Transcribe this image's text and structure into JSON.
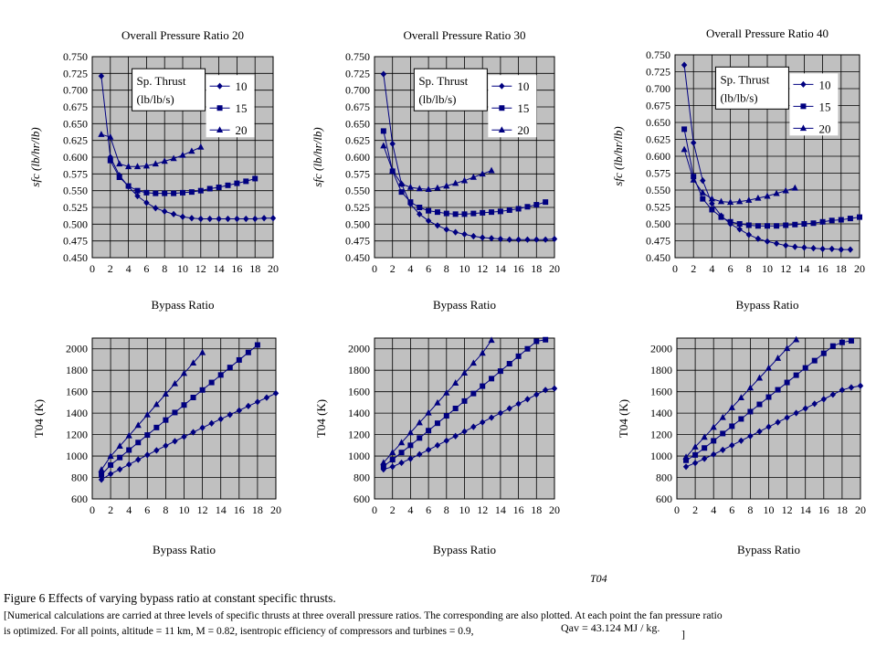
{
  "chart_data": [
    {
      "type": "line",
      "title": "Overall Pressure Ratio 20",
      "xlabel": "Bypass Ratio",
      "ylabel": "sfc  (lb/hr/lb)",
      "xlim": [
        0,
        20
      ],
      "ylim": [
        0.45,
        0.75
      ],
      "xticks": [
        "0",
        "2",
        "4",
        "6",
        "8",
        "10",
        "12",
        "14",
        "16",
        "18",
        "20"
      ],
      "yticks": [
        "0.450",
        "0.475",
        "0.500",
        "0.525",
        "0.550",
        "0.575",
        "0.600",
        "0.625",
        "0.650",
        "0.675",
        "0.700",
        "0.725",
        "0.750"
      ],
      "grid": true,
      "legend": {
        "title": [
          "Sp. Thrust",
          "(lb/lb/s)"
        ],
        "placement": "top-right"
      },
      "series": [
        {
          "name": "10",
          "marker": "diamond",
          "x": [
            1,
            2,
            3,
            4,
            5,
            6,
            7,
            8,
            9,
            10,
            11,
            12,
            13,
            14,
            15,
            16,
            17,
            18,
            19,
            20
          ],
          "y": [
            0.721,
            0.6,
            0.573,
            0.556,
            0.542,
            0.532,
            0.524,
            0.519,
            0.515,
            0.511,
            0.509,
            0.508,
            0.508,
            0.508,
            0.508,
            0.508,
            0.508,
            0.508,
            0.509,
            0.509
          ]
        },
        {
          "name": "15",
          "marker": "square",
          "x": [
            2,
            3,
            4,
            5,
            6,
            7,
            8,
            9,
            10,
            11,
            12,
            13,
            14,
            15,
            16,
            17,
            18
          ],
          "y": [
            0.595,
            0.57,
            0.557,
            0.55,
            0.547,
            0.546,
            0.546,
            0.546,
            0.547,
            0.548,
            0.55,
            0.553,
            0.555,
            0.558,
            0.561,
            0.564,
            0.568
          ]
        },
        {
          "name": "20",
          "marker": "triangle",
          "x": [
            1,
            2,
            3,
            4,
            5,
            6,
            7,
            8,
            9,
            10,
            11,
            12
          ],
          "y": [
            0.634,
            0.63,
            0.59,
            0.586,
            0.586,
            0.587,
            0.59,
            0.594,
            0.598,
            0.603,
            0.609,
            0.615
          ]
        }
      ]
    },
    {
      "type": "line",
      "title": "Overall Pressure Ratio 30",
      "xlabel": "Bypass Ratio",
      "ylabel": "sfc  (lb/hr/lb)",
      "xlim": [
        0,
        20
      ],
      "ylim": [
        0.45,
        0.75
      ],
      "xticks": [
        "0",
        "2",
        "4",
        "6",
        "8",
        "10",
        "12",
        "14",
        "16",
        "18",
        "20"
      ],
      "yticks": [
        "0.450",
        "0.475",
        "0.500",
        "0.525",
        "0.550",
        "0.575",
        "0.600",
        "0.625",
        "0.650",
        "0.675",
        "0.700",
        "0.725",
        "0.750"
      ],
      "grid": true,
      "legend": {
        "title": [
          "Sp. Thrust",
          "(lb/lb/s)"
        ],
        "placement": "top-right"
      },
      "series": [
        {
          "name": "10",
          "marker": "diamond",
          "x": [
            1,
            2,
            3,
            4,
            5,
            6,
            7,
            8,
            9,
            10,
            11,
            12,
            13,
            14,
            15,
            16,
            17,
            18,
            19,
            20
          ],
          "y": [
            0.724,
            0.62,
            0.56,
            0.53,
            0.515,
            0.505,
            0.498,
            0.492,
            0.488,
            0.485,
            0.482,
            0.48,
            0.479,
            0.478,
            0.477,
            0.477,
            0.477,
            0.477,
            0.477,
            0.478
          ]
        },
        {
          "name": "15",
          "marker": "square",
          "x": [
            1,
            2,
            3,
            4,
            5,
            6,
            7,
            8,
            9,
            10,
            11,
            12,
            13,
            14,
            15,
            16,
            17,
            18,
            19
          ],
          "y": [
            0.639,
            0.579,
            0.548,
            0.533,
            0.525,
            0.52,
            0.518,
            0.516,
            0.515,
            0.515,
            0.516,
            0.517,
            0.518,
            0.519,
            0.521,
            0.523,
            0.526,
            0.529,
            0.533
          ]
        },
        {
          "name": "20",
          "marker": "triangle",
          "x": [
            1,
            2,
            3,
            4,
            5,
            6,
            7,
            8,
            9,
            10,
            11,
            12,
            13
          ],
          "y": [
            0.617,
            0.58,
            0.56,
            0.555,
            0.553,
            0.552,
            0.554,
            0.557,
            0.561,
            0.565,
            0.57,
            0.575,
            0.58
          ]
        }
      ]
    },
    {
      "type": "line",
      "title": "Overall Pressure Ratio 40",
      "xlabel": "Bypass Ratio",
      "ylabel": "sfc  (lb/hr/lb)",
      "xlim": [
        0,
        20
      ],
      "ylim": [
        0.45,
        0.75
      ],
      "xticks": [
        "0",
        "2",
        "4",
        "6",
        "8",
        "10",
        "12",
        "14",
        "16",
        "18",
        "20"
      ],
      "yticks": [
        "0.450",
        "0.475",
        "0.500",
        "0.525",
        "0.550",
        "0.575",
        "0.600",
        "0.625",
        "0.650",
        "0.675",
        "0.700",
        "0.725",
        "0.750"
      ],
      "grid": true,
      "legend": {
        "title": [
          "Sp. Thrust",
          "(lb/lb/s)"
        ],
        "placement": "top-right"
      },
      "series": [
        {
          "name": "10",
          "marker": "diamond",
          "x": [
            1,
            2,
            3,
            4,
            5,
            6,
            7,
            8,
            9,
            10,
            11,
            12,
            13,
            14,
            15,
            16,
            17,
            18,
            19
          ],
          "y": [
            0.735,
            0.62,
            0.564,
            0.53,
            0.512,
            0.5,
            0.492,
            0.484,
            0.478,
            0.474,
            0.471,
            0.468,
            0.466,
            0.465,
            0.464,
            0.463,
            0.463,
            0.462,
            0.462
          ]
        },
        {
          "name": "15",
          "marker": "square",
          "x": [
            1,
            2,
            3,
            4,
            5,
            6,
            7,
            8,
            9,
            10,
            11,
            12,
            13,
            14,
            15,
            16,
            17,
            18,
            19,
            20
          ],
          "y": [
            0.64,
            0.57,
            0.537,
            0.521,
            0.51,
            0.503,
            0.5,
            0.498,
            0.497,
            0.497,
            0.497,
            0.498,
            0.499,
            0.5,
            0.501,
            0.503,
            0.505,
            0.506,
            0.508,
            0.51
          ]
        },
        {
          "name": "20",
          "marker": "triangle",
          "x": [
            1,
            2,
            3,
            4,
            5,
            6,
            7,
            8,
            9,
            10,
            11,
            12,
            13
          ],
          "y": [
            0.61,
            0.565,
            0.546,
            0.537,
            0.533,
            0.532,
            0.533,
            0.535,
            0.538,
            0.541,
            0.545,
            0.549,
            0.553
          ]
        }
      ]
    },
    {
      "type": "line",
      "title": "",
      "xlabel": "Bypass Ratio",
      "ylabel": "T04 (K)",
      "xlim": [
        0,
        20
      ],
      "ylim": [
        600,
        2100
      ],
      "xticks": [
        "0",
        "2",
        "4",
        "6",
        "8",
        "10",
        "12",
        "14",
        "16",
        "18",
        "20"
      ],
      "yticks": [
        "600",
        "800",
        "1000",
        "1200",
        "1400",
        "1600",
        "1800",
        "2000"
      ],
      "grid": true,
      "series": [
        {
          "marker": "diamond",
          "x": [
            1,
            2,
            3,
            4,
            5,
            6,
            7,
            8,
            9,
            10,
            11,
            12,
            13,
            14,
            15,
            16,
            17,
            18,
            19,
            20
          ],
          "y": [
            780,
            833,
            876,
            921,
            966,
            1010,
            1053,
            1096,
            1138,
            1180,
            1222,
            1264,
            1305,
            1345,
            1385,
            1425,
            1466,
            1505,
            1545,
            1585
          ]
        },
        {
          "marker": "square",
          "x": [
            1,
            2,
            3,
            4,
            5,
            6,
            7,
            8,
            9,
            10,
            11,
            12,
            13,
            14,
            15,
            16,
            17,
            18
          ],
          "y": [
            825,
            916,
            986,
            1056,
            1126,
            1196,
            1266,
            1336,
            1406,
            1476,
            1546,
            1616,
            1686,
            1756,
            1826,
            1896,
            1966,
            2036
          ]
        },
        {
          "marker": "triangle",
          "x": [
            1,
            2,
            3,
            4,
            5,
            6,
            7,
            8,
            9,
            10,
            11,
            12
          ],
          "y": [
            872,
            998,
            1093,
            1190,
            1287,
            1384,
            1481,
            1578,
            1675,
            1771,
            1868,
            1965
          ]
        }
      ]
    },
    {
      "type": "line",
      "title": "",
      "xlabel": "Bypass Ratio",
      "ylabel": "T04 (K)",
      "xlim": [
        0,
        20
      ],
      "ylim": [
        600,
        2100
      ],
      "xticks": [
        "0",
        "2",
        "4",
        "6",
        "8",
        "10",
        "12",
        "14",
        "16",
        "18",
        "20"
      ],
      "yticks": [
        "600",
        "800",
        "1000",
        "1200",
        "1400",
        "1600",
        "1800",
        "2000"
      ],
      "grid": true,
      "series": [
        {
          "marker": "diamond",
          "x": [
            1,
            2,
            3,
            4,
            5,
            6,
            7,
            8,
            9,
            10,
            11,
            12,
            13,
            14,
            15,
            16,
            17,
            18,
            19,
            20
          ],
          "y": [
            876,
            900,
            937,
            975,
            1016,
            1058,
            1100,
            1143,
            1186,
            1229,
            1272,
            1315,
            1358,
            1401,
            1444,
            1487,
            1530,
            1573,
            1616,
            1630
          ]
        },
        {
          "marker": "square",
          "x": [
            1,
            2,
            3,
            4,
            5,
            6,
            7,
            8,
            9,
            10,
            11,
            12,
            13,
            14,
            15,
            16,
            17,
            18,
            19
          ],
          "y": [
            905,
            966,
            1033,
            1100,
            1168,
            1237,
            1306,
            1375,
            1444,
            1513,
            1583,
            1652,
            1722,
            1792,
            1861,
            1931,
            2000,
            2070,
            2085
          ]
        },
        {
          "marker": "triangle",
          "x": [
            1,
            2,
            3,
            4,
            5,
            6,
            7,
            8,
            9,
            10,
            11,
            12,
            13
          ],
          "y": [
            938,
            1033,
            1125,
            1218,
            1311,
            1403,
            1496,
            1589,
            1681,
            1774,
            1867,
            1960,
            2080
          ]
        }
      ]
    },
    {
      "type": "line",
      "title": "",
      "xlabel": "Bypass Ratio",
      "ylabel": "T04 (K)",
      "xlim": [
        0,
        20
      ],
      "ylim": [
        600,
        2100
      ],
      "xticks": [
        "0",
        "2",
        "4",
        "6",
        "8",
        "10",
        "12",
        "14",
        "16",
        "18",
        "20"
      ],
      "yticks": [
        "600",
        "800",
        "1000",
        "1200",
        "1400",
        "1600",
        "1800",
        "2000"
      ],
      "grid": true,
      "series": [
        {
          "marker": "diamond",
          "x": [
            1,
            2,
            3,
            4,
            5,
            6,
            7,
            8,
            9,
            10,
            11,
            12,
            13,
            14,
            15,
            16,
            17,
            18,
            19,
            20
          ],
          "y": [
            900,
            935,
            975,
            1015,
            1057,
            1100,
            1143,
            1186,
            1229,
            1272,
            1315,
            1358,
            1401,
            1444,
            1487,
            1530,
            1573,
            1616,
            1640,
            1655
          ]
        },
        {
          "marker": "square",
          "x": [
            1,
            2,
            3,
            4,
            5,
            6,
            7,
            8,
            9,
            10,
            11,
            12,
            13,
            14,
            15,
            16,
            17,
            18,
            19
          ],
          "y": [
            960,
            1010,
            1075,
            1142,
            1210,
            1278,
            1346,
            1414,
            1482,
            1550,
            1618,
            1686,
            1754,
            1822,
            1890,
            1958,
            2026,
            2060,
            2075
          ]
        },
        {
          "marker": "triangle",
          "x": [
            1,
            2,
            3,
            4,
            5,
            6,
            7,
            8,
            9,
            10,
            11,
            12,
            13
          ],
          "y": [
            990,
            1085,
            1176,
            1268,
            1360,
            1452,
            1544,
            1636,
            1728,
            1820,
            1912,
            2004,
            2085
          ]
        }
      ]
    }
  ],
  "caption": {
    "title": "Figure 6   Effects of varying bypass ratio at constant specific thrusts.",
    "line1": "[Numerical calculations are carried at three levels of specific thrusts at three overall pressure ratios.  The corresponding            are also plotted.  At each point the fan pressure ratio",
    "line2": "is optimized.   For all points, altitude = 11 km,  M = 0.82, isentropic efficiency of compressors and turbines = 0.9,",
    "t04": "T04",
    "q": "Qav = 43.124 MJ / kg.",
    "bracket": "]"
  },
  "colors": {
    "series": "#000080",
    "plot_bg": "#c0c0c0",
    "grid": "#000000"
  }
}
